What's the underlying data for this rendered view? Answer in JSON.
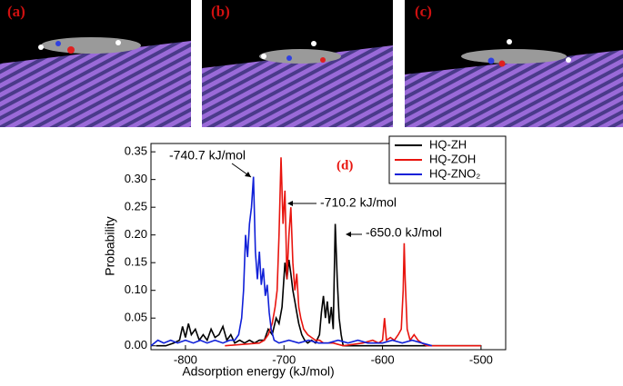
{
  "panels": [
    "(a)",
    "(b)",
    "(c)"
  ],
  "chart_data": {
    "type": "line",
    "xlabel": "Adsorption energy (kJ/mol)",
    "ylabel": "Probability",
    "xlim": [
      -835,
      -475
    ],
    "ylim": [
      -0.007,
      0.365
    ],
    "xticks": [
      -800,
      -700,
      -600,
      -500
    ],
    "yticks": [
      {
        "value": 0,
        "label": "0.00"
      },
      {
        "value": 0.05,
        "label": "0.05"
      },
      {
        "value": 0.1,
        "label": "0.10"
      },
      {
        "value": 0.15,
        "label": "0.15"
      },
      {
        "value": 0.2,
        "label": "0.20"
      },
      {
        "value": 0.25,
        "label": "0.25"
      },
      {
        "value": 0.3,
        "label": "0.30"
      },
      {
        "value": 0.35,
        "label": "0.35"
      }
    ],
    "legend": "upper right",
    "annotations": [
      "-740.7 kJ/mol",
      "-710.2 kJ/mol",
      "-650.0 kJ/mol",
      "(d)"
    ],
    "series": [
      {
        "name": "HQ-ZH",
        "color": "#000000",
        "x": [
          -830,
          -820,
          -812,
          -806,
          -803,
          -800,
          -797,
          -794,
          -790,
          -786,
          -782,
          -778,
          -774,
          -770,
          -766,
          -762,
          -758,
          -754,
          -750,
          -745,
          -740,
          -735,
          -730,
          -725,
          -720,
          -716,
          -712,
          -708,
          -705,
          -702,
          -699,
          -697,
          -695,
          -693,
          -691,
          -689,
          -687,
          -685,
          -682,
          -679,
          -676,
          -672,
          -668,
          -664,
          -662,
          -660,
          -658,
          -656,
          -654,
          -652,
          -650,
          -648,
          -646,
          -644,
          -642,
          -640,
          -630,
          -600,
          -550,
          -500
        ],
        "values": [
          0,
          0,
          0.005,
          0.01,
          0.035,
          0.015,
          0.04,
          0.02,
          0.03,
          0.01,
          0.02,
          0.01,
          0.03,
          0.015,
          0.02,
          0.035,
          0.01,
          0.02,
          0.005,
          0.01,
          0.005,
          0.01,
          0.005,
          0.01,
          0.01,
          0.03,
          0.02,
          0.05,
          0.04,
          0.07,
          0.15,
          0.12,
          0.155,
          0.13,
          0.1,
          0.08,
          0.06,
          0.04,
          0.02,
          0.01,
          0.005,
          0.01,
          0.005,
          0.02,
          0.06,
          0.09,
          0.05,
          0.08,
          0.04,
          0.07,
          0.03,
          0.22,
          0.12,
          0.05,
          0.02,
          0,
          0,
          0,
          0,
          0
        ]
      },
      {
        "name": "HQ-ZOH",
        "color": "#e8140e",
        "x": [
          -760,
          -725,
          -720,
          -716,
          -712,
          -709,
          -707,
          -705,
          -703,
          -701,
          -699,
          -697,
          -695,
          -693,
          -691,
          -689,
          -687,
          -685,
          -683,
          -680,
          -676,
          -672,
          -668,
          -664,
          -660,
          -650,
          -640,
          -620,
          -610,
          -604,
          -600,
          -598,
          -596,
          -592,
          -588,
          -584,
          -581,
          -579,
          -578,
          -577,
          -575,
          -572,
          -568,
          -564,
          -560,
          -555,
          -500
        ],
        "values": [
          0,
          0.005,
          0.01,
          0.02,
          0.04,
          0.07,
          0.1,
          0.2,
          0.34,
          0.22,
          0.28,
          0.12,
          0.2,
          0.25,
          0.15,
          0.1,
          0.13,
          0.07,
          0.05,
          0.03,
          0.02,
          0.015,
          0.01,
          0.01,
          0.005,
          0.005,
          0,
          0.005,
          0.01,
          0.005,
          0.01,
          0.05,
          0.01,
          0.015,
          0.01,
          0.02,
          0.03,
          0.1,
          0.185,
          0.12,
          0.03,
          0.01,
          0.02,
          0.01,
          0.005,
          0,
          0
        ]
      },
      {
        "name": "HQ-ZNO₂",
        "color": "#1020d8",
        "x": [
          -835,
          -828,
          -822,
          -815,
          -808,
          -800,
          -792,
          -785,
          -778,
          -770,
          -762,
          -755,
          -750,
          -746,
          -743,
          -741,
          -739,
          -737,
          -735,
          -733,
          -731,
          -729,
          -727,
          -725,
          -723,
          -721,
          -719,
          -717,
          -715,
          -713,
          -710,
          -705,
          -695,
          -685,
          -675,
          -665,
          -655,
          -645,
          -635,
          -625,
          -615,
          -600,
          -590,
          -580,
          -570,
          -560,
          -550
        ],
        "values": [
          0,
          0.01,
          0.005,
          0.01,
          0.005,
          0.01,
          0.005,
          0.01,
          0.005,
          0.01,
          0.005,
          0.01,
          0.01,
          0.02,
          0.05,
          0.1,
          0.2,
          0.16,
          0.22,
          0.25,
          0.305,
          0.17,
          0.12,
          0.17,
          0.11,
          0.14,
          0.09,
          0.11,
          0.06,
          0.03,
          0.01,
          0.005,
          0.01,
          0.005,
          0.01,
          0.005,
          0.005,
          0.01,
          0.005,
          0.01,
          0.005,
          0.005,
          0.01,
          0.005,
          0.01,
          0.005,
          0
        ]
      }
    ]
  }
}
